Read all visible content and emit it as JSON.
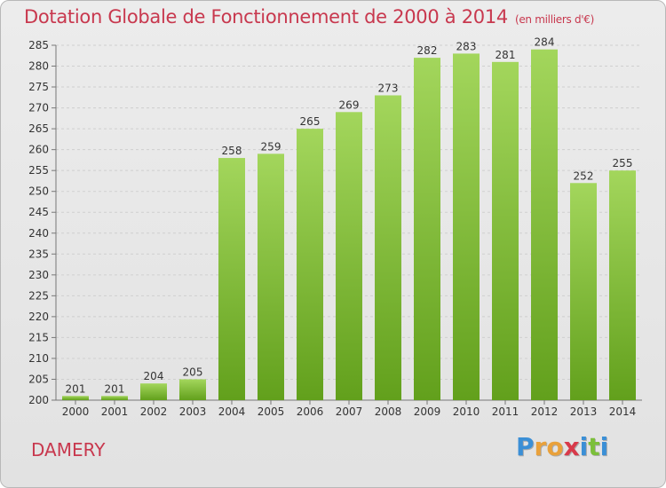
{
  "header": {
    "title": "Dotation Globale de Fonctionnement de 2000 à 2014",
    "subtitle": "(en milliers d'€)"
  },
  "footer": {
    "city": "DAMERY",
    "logo": {
      "letters": [
        "P",
        "r",
        "o",
        "x",
        "i",
        "t",
        "i"
      ],
      "colors": [
        "#3b8fd6",
        "#e9a13b",
        "#e9a13b",
        "#d83a4a",
        "#3b8fd6",
        "#7bbf3a",
        "#3b8fd6"
      ]
    }
  },
  "chart_data": {
    "type": "bar",
    "categories": [
      "2000",
      "2001",
      "2002",
      "2003",
      "2004",
      "2005",
      "2006",
      "2007",
      "2008",
      "2009",
      "2010",
      "2011",
      "2012",
      "2013",
      "2014"
    ],
    "values": [
      201,
      201,
      204,
      205,
      258,
      259,
      265,
      269,
      273,
      282,
      283,
      281,
      284,
      252,
      255
    ],
    "data_labels": [
      "201",
      "201",
      "204",
      "205",
      "258",
      "259",
      "265",
      "269",
      "273",
      "282",
      "283",
      "281",
      "284",
      "252",
      "255"
    ],
    "title": "Dotation Globale de Fonctionnement de 2000 à 2014",
    "xlabel": "",
    "ylabel": "",
    "ylim": [
      200,
      285
    ],
    "yticks": [
      "200",
      "205",
      "210",
      "215",
      "220",
      "225",
      "230",
      "235",
      "240",
      "245",
      "250",
      "255",
      "260",
      "265",
      "270",
      "275",
      "280",
      "285"
    ],
    "grid": true,
    "legend": "none",
    "colors": {
      "bar_light": "#a3d65c",
      "bar_dark": "#62a01c",
      "title": "#c8384e"
    }
  }
}
